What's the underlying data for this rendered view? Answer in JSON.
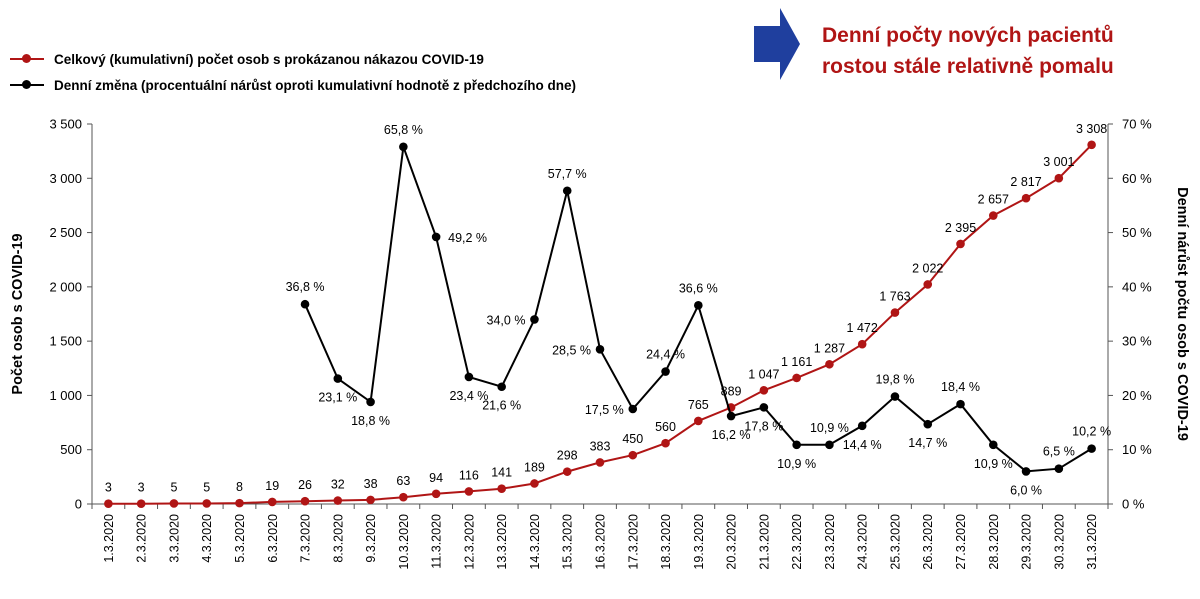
{
  "headline": {
    "line1": "Denní počty nových pacientů",
    "line2": "rostou stále relativně pomalu"
  },
  "colors": {
    "cumulative": "#b01515",
    "daily": "#000000",
    "headline": "#b01515",
    "arrow": "#1f3f9e"
  },
  "legend": [
    {
      "label": "Celkový (kumulativní) počet osob s prokázanou nákazou COVID-19",
      "color": "#b01515"
    },
    {
      "label": "Denní změna (procentuální nárůst oproti kumulativní hodnotě z předchozího dne)",
      "color": "#000000"
    }
  ],
  "chart_data": {
    "type": "line",
    "categories": [
      "1.3.2020",
      "2.3.2020",
      "3.3.2020",
      "4.3.2020",
      "5.3.2020",
      "6.3.2020",
      "7.3.2020",
      "8.3.2020",
      "9.3.2020",
      "10.3.2020",
      "11.3.2020",
      "12.3.2020",
      "13.3.2020",
      "14.3.2020",
      "15.3.2020",
      "16.3.2020",
      "17.3.2020",
      "18.3.2020",
      "19.3.2020",
      "20.3.2020",
      "21.3.2020",
      "22.3.2020",
      "23.3.2020",
      "24.3.2020",
      "25.3.2020",
      "26.3.2020",
      "27.3.2020",
      "28.3.2020",
      "29.3.2020",
      "30.3.2020",
      "31.3.2020"
    ],
    "ylabel_left": "Počet osob s COVID-19",
    "ylabel_right": "Denní nárůst počtu osob s COVID-19",
    "ylim_left": [
      0,
      3500
    ],
    "ylim_right": [
      0,
      70
    ],
    "yticks_left": [
      "0",
      "500",
      "1 000",
      "1 500",
      "2 000",
      "2 500",
      "3 000",
      "3 500"
    ],
    "yticks_right": [
      "0 %",
      "10 %",
      "20 %",
      "30 %",
      "40 %",
      "50 %",
      "60 %",
      "70 %"
    ],
    "series": [
      {
        "name": "Celkový (kumulativní) počet osob s prokázanou nákazou COVID-19",
        "axis": "left",
        "values": [
          3,
          3,
          5,
          5,
          8,
          19,
          26,
          32,
          38,
          63,
          94,
          116,
          141,
          189,
          298,
          383,
          450,
          560,
          765,
          889,
          1047,
          1161,
          1287,
          1472,
          1763,
          2022,
          2395,
          2657,
          2817,
          3001,
          3308
        ],
        "labels": [
          "3",
          "3",
          "5",
          "5",
          "8",
          "19",
          "26",
          "32",
          "38",
          "63",
          "94",
          "116",
          "141",
          "189",
          "298",
          "383",
          "450",
          "560",
          "765",
          "889",
          "1 047",
          "1 161",
          "1 287",
          "1 472",
          "1 763",
          "2 022",
          "2 395",
          "2 657",
          "2 817",
          "3 001",
          "3 308"
        ]
      },
      {
        "name": "Denní změna (procentuální nárůst oproti kumulativní hodnotě z předchozího dne)",
        "axis": "right",
        "values": [
          null,
          null,
          null,
          null,
          null,
          null,
          36.8,
          23.1,
          18.8,
          65.8,
          49.2,
          23.4,
          21.6,
          34.0,
          57.7,
          28.5,
          17.5,
          24.4,
          36.6,
          16.2,
          17.8,
          10.9,
          10.9,
          14.4,
          19.8,
          14.7,
          18.4,
          10.9,
          6.0,
          6.5,
          10.2
        ],
        "labels": [
          null,
          null,
          null,
          null,
          null,
          null,
          "36,8 %",
          "23,1 %",
          "18,8 %",
          "65,8 %",
          "49,2 %",
          "23,4 %",
          "21,6 %",
          "34,0 %",
          "57,7 %",
          "28,5 %",
          "17,5 %",
          "24,4 %",
          "36,6 %",
          "16,2 %",
          "17,8 %",
          "10,9 %",
          "10,9 %",
          "14,4 %",
          "19,8 %",
          "14,7 %",
          "18,4 %",
          "10,9 %",
          "6,0 %",
          "6,5 %",
          "10,2 %"
        ]
      }
    ]
  }
}
